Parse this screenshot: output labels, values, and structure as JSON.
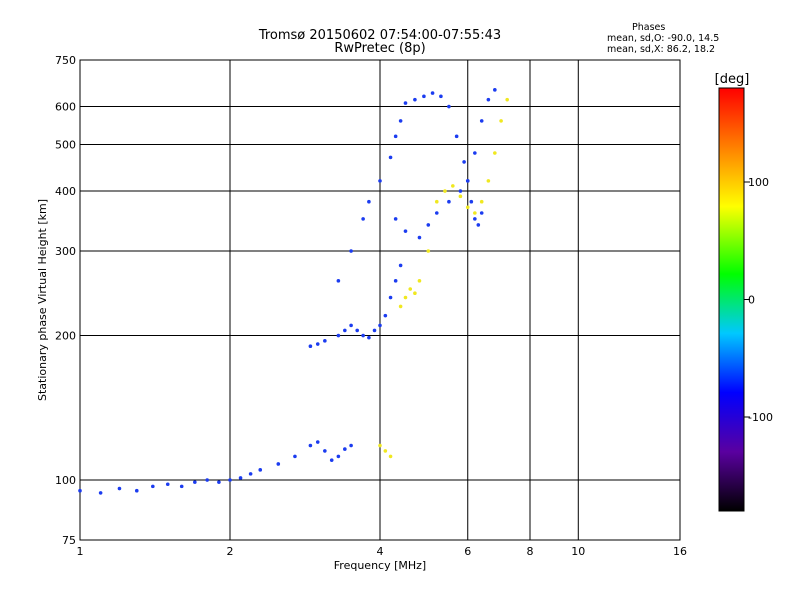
{
  "chart_data": {
    "type": "scatter",
    "title": "Tromsø 20150602 07:54:00-07:55:43",
    "subtitle": "RwPretec (8p)",
    "xlabel": "Frequency [MHz]",
    "ylabel": "Stationary phase Virtual Height [km]",
    "xscale": "log",
    "yscale": "log",
    "xlim": [
      1,
      16
    ],
    "ylim": [
      75,
      750
    ],
    "x_ticks": [
      "1",
      "2",
      "4",
      "6",
      "8",
      "10",
      "16"
    ],
    "x_tick_values": [
      1,
      2,
      4,
      6,
      8,
      10,
      16
    ],
    "y_ticks": [
      "75",
      "100",
      "200",
      "300",
      "400",
      "500",
      "600",
      "750"
    ],
    "y_tick_values": [
      75,
      100,
      200,
      300,
      400,
      500,
      600,
      750
    ],
    "grid": true,
    "stats": {
      "heading": "Phases",
      "line1": "mean, sd,O: -90.0, 14.5",
      "line2": "mean, sd,X:  86.2, 18.2"
    },
    "colorbar": {
      "label": "[deg]",
      "range": [
        -180,
        180
      ],
      "ticks": [
        "100",
        "0",
        "-100"
      ],
      "tick_values": [
        100,
        0,
        -100
      ]
    },
    "series": [
      {
        "color_hint": "blue (O-mode, ~ -90 deg)",
        "x": [
          1.0,
          1.1,
          1.2,
          1.3,
          1.4,
          1.5,
          1.6,
          1.7,
          1.8,
          1.9,
          2.0,
          2.1,
          2.2,
          2.3,
          2.5,
          2.7,
          2.9,
          3.0,
          3.1,
          3.2,
          3.3,
          3.4,
          3.5,
          2.9,
          3.0,
          3.1,
          3.3,
          3.4,
          3.5,
          3.6,
          3.7,
          3.8,
          3.9,
          4.0,
          4.1,
          4.2,
          4.3,
          4.4,
          3.3,
          3.5,
          3.7,
          3.8,
          4.0,
          4.2,
          4.3,
          4.4,
          4.5,
          4.7,
          4.9,
          5.1,
          5.3,
          5.5,
          5.7,
          5.9,
          6.0,
          6.1,
          6.2,
          6.3,
          6.4,
          4.3,
          4.5,
          4.8,
          5.0,
          5.2,
          5.5,
          5.8,
          6.0,
          6.2,
          6.4,
          6.6,
          6.8
        ],
        "y": [
          95,
          94,
          96,
          95,
          97,
          98,
          97,
          99,
          100,
          99,
          100,
          101,
          103,
          105,
          108,
          112,
          118,
          120,
          115,
          110,
          112,
          116,
          118,
          190,
          192,
          195,
          200,
          205,
          210,
          205,
          200,
          198,
          205,
          210,
          220,
          240,
          260,
          280,
          260,
          300,
          350,
          380,
          420,
          470,
          520,
          560,
          610,
          620,
          630,
          640,
          630,
          600,
          520,
          460,
          420,
          380,
          350,
          340,
          360,
          350,
          330,
          320,
          340,
          360,
          380,
          400,
          420,
          480,
          560,
          620,
          650
        ]
      },
      {
        "color_hint": "yellow (X-mode, ~ +86 deg)",
        "x": [
          4.0,
          4.1,
          4.2,
          4.4,
          4.5,
          4.6,
          4.7,
          4.8,
          5.0,
          5.2,
          5.4,
          5.6,
          5.8,
          6.0,
          6.2,
          6.4,
          6.6,
          6.8,
          7.0,
          7.2
        ],
        "y": [
          118,
          115,
          112,
          230,
          240,
          250,
          245,
          260,
          300,
          380,
          400,
          410,
          390,
          370,
          360,
          380,
          420,
          480,
          560,
          620
        ]
      }
    ]
  }
}
